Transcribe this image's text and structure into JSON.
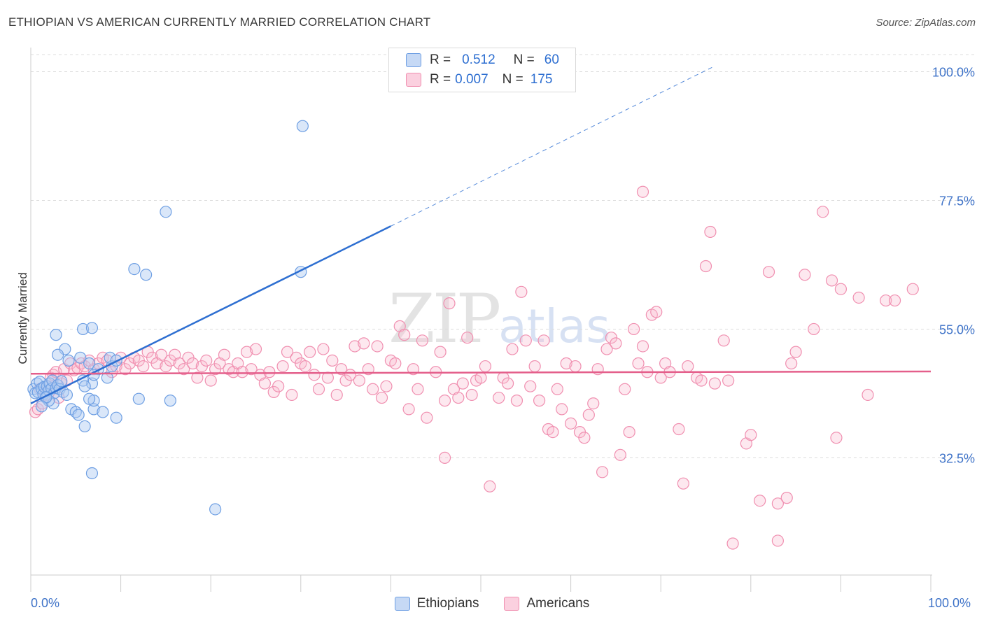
{
  "header": {
    "title": "ETHIOPIAN VS AMERICAN CURRENTLY MARRIED CORRELATION CHART",
    "source": "Source: ZipAtlas.com"
  },
  "legend": {
    "ethiopians": {
      "r_label": "R =",
      "r": "0.512",
      "n_label": "N =",
      "n": "60"
    },
    "americans": {
      "r_label": "R =",
      "r": "0.007",
      "n_label": "N =",
      "n": "175"
    }
  },
  "bottom_legend": {
    "ethiopians": "Ethiopians",
    "americans": "Americans"
  },
  "x_axis": {
    "min_label": "0.0%",
    "max_label": "100.0%"
  },
  "colors": {
    "blue": "#6e9fe3",
    "pink": "#f08fb0",
    "blue_line": "#2e6fd1",
    "pink_line": "#e45f8b"
  },
  "chart_data": {
    "type": "scatter",
    "ylabel": "Currently Married",
    "xlim": [
      0,
      100
    ],
    "ylim": [
      12,
      103
    ],
    "y_ticks": [
      {
        "value": 32.5,
        "label": "32.5%"
      },
      {
        "value": 55.0,
        "label": "55.0%"
      },
      {
        "value": 77.5,
        "label": "77.5%"
      },
      {
        "value": 100.0,
        "label": "100.0%"
      }
    ],
    "grid": true,
    "series": [
      {
        "name": "Ethiopians",
        "trend": {
          "x0": 0,
          "y0": 42.0,
          "x1": 40,
          "y1": 73.0,
          "x_dash_end": 76,
          "y_dash_end": 101.0
        },
        "points": [
          [
            0.3,
            44.5
          ],
          [
            0.5,
            43.8
          ],
          [
            0.7,
            45.5
          ],
          [
            0.8,
            44.0
          ],
          [
            1.0,
            45.8
          ],
          [
            1.2,
            44.6
          ],
          [
            1.4,
            43.6
          ],
          [
            1.5,
            44.9
          ],
          [
            1.7,
            43.0
          ],
          [
            1.8,
            45.0
          ],
          [
            2.0,
            44.3
          ],
          [
            2.1,
            45.5
          ],
          [
            2.3,
            44.6
          ],
          [
            2.4,
            46.0
          ],
          [
            2.6,
            43.8
          ],
          [
            2.8,
            44.7
          ],
          [
            3.0,
            45.2
          ],
          [
            3.2,
            44.5
          ],
          [
            3.4,
            45.9
          ],
          [
            3.6,
            44.0
          ],
          [
            2.5,
            42.0
          ],
          [
            2.0,
            42.5
          ],
          [
            1.7,
            43.1
          ],
          [
            1.2,
            41.5
          ],
          [
            4.0,
            43.5
          ],
          [
            4.5,
            41.0
          ],
          [
            5.0,
            40.5
          ],
          [
            5.3,
            40.0
          ],
          [
            6.0,
            38.0
          ],
          [
            7.0,
            41.0
          ],
          [
            8.0,
            40.5
          ],
          [
            2.8,
            54.0
          ],
          [
            3.8,
            51.5
          ],
          [
            3.0,
            50.5
          ],
          [
            4.2,
            49.5
          ],
          [
            5.5,
            50.0
          ],
          [
            6.5,
            49.0
          ],
          [
            7.5,
            48.0
          ],
          [
            6.8,
            45.5
          ],
          [
            7.0,
            47.0
          ],
          [
            5.8,
            46.0
          ],
          [
            6.0,
            45.0
          ],
          [
            8.5,
            46.5
          ],
          [
            9.0,
            48.5
          ],
          [
            8.8,
            50.0
          ],
          [
            9.5,
            49.5
          ],
          [
            5.8,
            55.0
          ],
          [
            6.8,
            55.2
          ],
          [
            7.0,
            42.5
          ],
          [
            9.5,
            39.5
          ],
          [
            12.0,
            42.8
          ],
          [
            15.5,
            42.5
          ],
          [
            11.5,
            65.5
          ],
          [
            12.8,
            64.5
          ],
          [
            15.0,
            75.5
          ],
          [
            30.0,
            65.0
          ],
          [
            30.2,
            90.5
          ],
          [
            6.8,
            29.8
          ],
          [
            20.5,
            23.5
          ],
          [
            6.5,
            42.8
          ]
        ]
      },
      {
        "name": "Americans",
        "trend": {
          "x0": 0,
          "y0": 47.2,
          "x1": 100,
          "y1": 47.6
        },
        "points": [
          [
            0.5,
            40.5
          ],
          [
            0.8,
            41.0
          ],
          [
            1.0,
            44.5
          ],
          [
            1.3,
            42.0
          ],
          [
            1.6,
            43.5
          ],
          [
            1.9,
            45.0
          ],
          [
            2.2,
            46.5
          ],
          [
            2.5,
            47.0
          ],
          [
            2.8,
            47.5
          ],
          [
            3.1,
            43.0
          ],
          [
            3.4,
            45.5
          ],
          [
            3.7,
            48.0
          ],
          [
            4.0,
            46.0
          ],
          [
            4.4,
            49.0
          ],
          [
            4.8,
            47.8
          ],
          [
            5.2,
            48.2
          ],
          [
            5.6,
            49.0
          ],
          [
            6.0,
            48.5
          ],
          [
            6.5,
            49.5
          ],
          [
            7.0,
            48.0
          ],
          [
            7.5,
            49.0
          ],
          [
            8.0,
            50.0
          ],
          [
            8.5,
            49.5
          ],
          [
            9.0,
            47.5
          ],
          [
            9.5,
            48.5
          ],
          [
            10.0,
            50.0
          ],
          [
            10.5,
            48.0
          ],
          [
            11.0,
            49.0
          ],
          [
            11.5,
            50.0
          ],
          [
            12.0,
            49.5
          ],
          [
            12.5,
            48.5
          ],
          [
            13.0,
            51.0
          ],
          [
            13.5,
            50.0
          ],
          [
            14.0,
            49.0
          ],
          [
            14.5,
            50.5
          ],
          [
            15.0,
            48.5
          ],
          [
            15.5,
            49.5
          ],
          [
            16.0,
            50.5
          ],
          [
            16.5,
            49.0
          ],
          [
            17.0,
            48.0
          ],
          [
            17.5,
            50.0
          ],
          [
            18.0,
            49.0
          ],
          [
            18.5,
            46.5
          ],
          [
            19.0,
            48.5
          ],
          [
            19.5,
            49.5
          ],
          [
            20.0,
            46.0
          ],
          [
            20.5,
            48.0
          ],
          [
            21.0,
            49.0
          ],
          [
            21.5,
            50.5
          ],
          [
            22.0,
            48.0
          ],
          [
            22.5,
            47.5
          ],
          [
            23.0,
            49.0
          ],
          [
            23.5,
            47.5
          ],
          [
            24.0,
            51.0
          ],
          [
            24.5,
            48.0
          ],
          [
            25.0,
            51.5
          ],
          [
            25.5,
            47.0
          ],
          [
            26.0,
            45.5
          ],
          [
            26.5,
            47.5
          ],
          [
            27.0,
            44.0
          ],
          [
            27.5,
            45.0
          ],
          [
            28.0,
            48.5
          ],
          [
            28.5,
            51.0
          ],
          [
            29.0,
            43.5
          ],
          [
            29.5,
            50.0
          ],
          [
            30.0,
            49.0
          ],
          [
            30.5,
            48.5
          ],
          [
            31.0,
            51.0
          ],
          [
            31.5,
            47.0
          ],
          [
            32.0,
            44.5
          ],
          [
            32.5,
            51.5
          ],
          [
            33.0,
            46.5
          ],
          [
            33.5,
            49.5
          ],
          [
            34.0,
            43.5
          ],
          [
            34.5,
            48.0
          ],
          [
            35.0,
            46.0
          ],
          [
            35.5,
            47.0
          ],
          [
            36.0,
            52.0
          ],
          [
            36.5,
            46.0
          ],
          [
            37.0,
            52.5
          ],
          [
            37.5,
            48.0
          ],
          [
            38.0,
            44.5
          ],
          [
            38.5,
            52.0
          ],
          [
            39.0,
            43.0
          ],
          [
            39.5,
            45.0
          ],
          [
            40.0,
            49.5
          ],
          [
            40.5,
            49.0
          ],
          [
            41.0,
            55.5
          ],
          [
            41.5,
            54.0
          ],
          [
            42.0,
            41.0
          ],
          [
            42.5,
            48.0
          ],
          [
            43.0,
            44.5
          ],
          [
            43.5,
            53.0
          ],
          [
            44.0,
            39.5
          ],
          [
            45.0,
            47.5
          ],
          [
            45.5,
            51.0
          ],
          [
            46.0,
            32.5
          ],
          [
            46.5,
            59.5
          ],
          [
            47.0,
            44.5
          ],
          [
            47.5,
            43.0
          ],
          [
            48.0,
            45.5
          ],
          [
            48.5,
            53.5
          ],
          [
            49.0,
            43.5
          ],
          [
            49.5,
            46.0
          ],
          [
            50.0,
            46.5
          ],
          [
            50.5,
            48.5
          ],
          [
            51.0,
            27.5
          ],
          [
            52.0,
            43.0
          ],
          [
            52.5,
            46.5
          ],
          [
            53.0,
            45.5
          ],
          [
            53.5,
            51.5
          ],
          [
            54.0,
            42.5
          ],
          [
            54.5,
            61.5
          ],
          [
            55.0,
            53.0
          ],
          [
            55.5,
            45.0
          ],
          [
            56.0,
            48.5
          ],
          [
            56.5,
            42.5
          ],
          [
            57.0,
            53.0
          ],
          [
            57.5,
            37.5
          ],
          [
            58.0,
            37.0
          ],
          [
            58.5,
            44.5
          ],
          [
            59.0,
            41.0
          ],
          [
            59.5,
            49.0
          ],
          [
            60.0,
            38.5
          ],
          [
            60.5,
            48.5
          ],
          [
            61.0,
            37.0
          ],
          [
            61.5,
            36.0
          ],
          [
            62.0,
            40.0
          ],
          [
            62.5,
            42.0
          ],
          [
            63.0,
            48.0
          ],
          [
            63.5,
            30.0
          ],
          [
            64.0,
            51.5
          ],
          [
            64.5,
            53.5
          ],
          [
            65.0,
            52.5
          ],
          [
            65.5,
            33.0
          ],
          [
            66.0,
            44.5
          ],
          [
            66.5,
            37.0
          ],
          [
            67.0,
            55.0
          ],
          [
            67.5,
            49.0
          ],
          [
            68.0,
            79.0
          ],
          [
            68.5,
            47.5
          ],
          [
            69.0,
            57.5
          ],
          [
            69.5,
            58.0
          ],
          [
            70.0,
            46.5
          ],
          [
            70.5,
            49.0
          ],
          [
            71.0,
            47.5
          ],
          [
            72.0,
            37.5
          ],
          [
            72.5,
            28.0
          ],
          [
            73.0,
            48.5
          ],
          [
            74.0,
            46.5
          ],
          [
            74.5,
            46.0
          ],
          [
            75.0,
            66.0
          ],
          [
            75.5,
            72.0
          ],
          [
            76.0,
            45.5
          ],
          [
            77.0,
            53.0
          ],
          [
            77.5,
            46.0
          ],
          [
            78.0,
            17.5
          ],
          [
            79.5,
            35.0
          ],
          [
            80.0,
            36.5
          ],
          [
            81.0,
            25.0
          ],
          [
            82.0,
            65.0
          ],
          [
            83.0,
            24.5
          ],
          [
            84.0,
            25.5
          ],
          [
            84.5,
            49.0
          ],
          [
            85.0,
            51.0
          ],
          [
            86.0,
            64.5
          ],
          [
            87.0,
            55.0
          ],
          [
            88.0,
            75.5
          ],
          [
            89.0,
            63.5
          ],
          [
            89.5,
            36.0
          ],
          [
            90.0,
            62.0
          ],
          [
            92.0,
            60.5
          ],
          [
            93.0,
            43.5
          ],
          [
            95.0,
            60.0
          ],
          [
            96.0,
            60.0
          ],
          [
            98.0,
            62.0
          ],
          [
            83.0,
            18.0
          ],
          [
            46.0,
            42.5
          ],
          [
            68.0,
            52.0
          ]
        ]
      }
    ]
  }
}
